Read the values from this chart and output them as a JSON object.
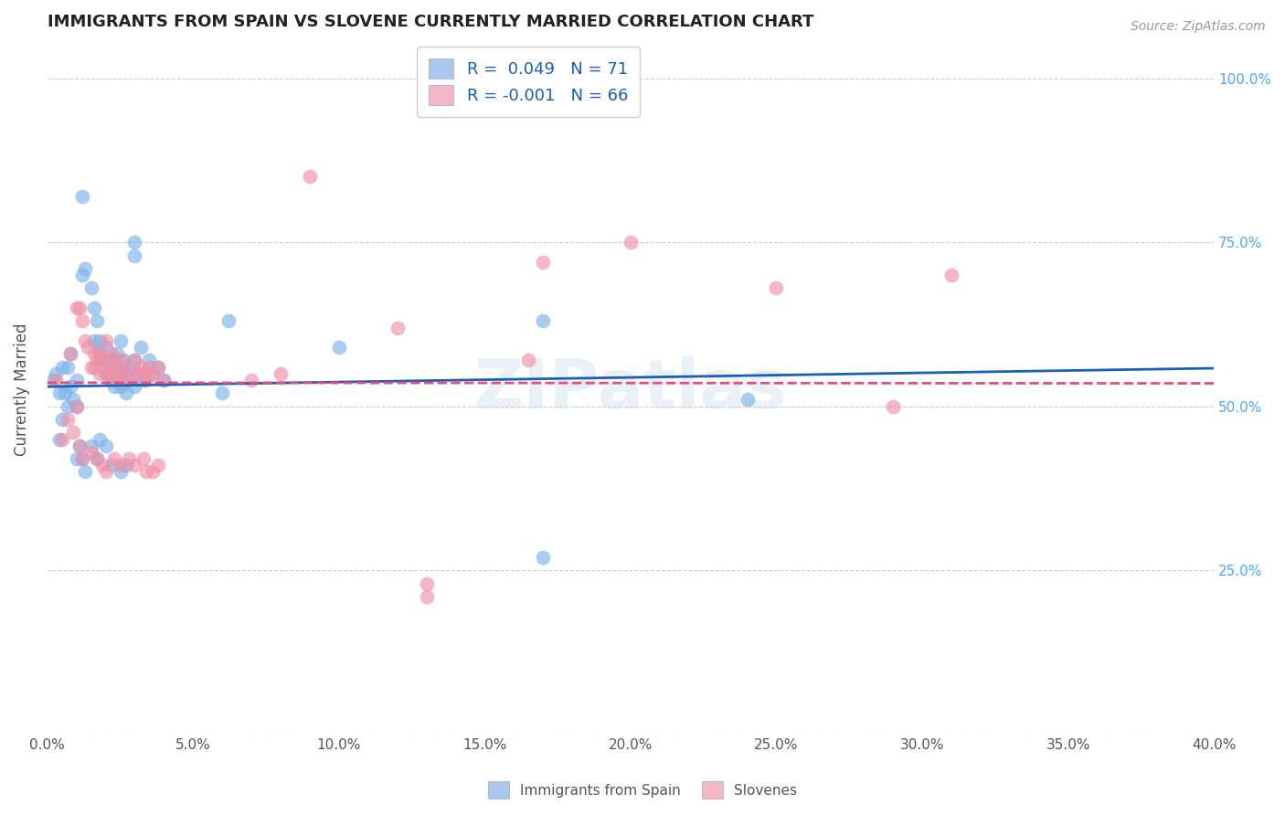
{
  "title": "IMMIGRANTS FROM SPAIN VS SLOVENE CURRENTLY MARRIED CORRELATION CHART",
  "source": "Source: ZipAtlas.com",
  "ylabel": "Currently Married",
  "ytick_labels": [
    "",
    "25.0%",
    "50.0%",
    "75.0%",
    "100.0%"
  ],
  "ytick_values": [
    0.0,
    0.25,
    0.5,
    0.75,
    1.0
  ],
  "xtick_values": [
    0.0,
    0.05,
    0.1,
    0.15,
    0.2,
    0.25,
    0.3,
    0.35,
    0.4
  ],
  "xlim": [
    0.0,
    0.4
  ],
  "ylim": [
    0.0,
    1.05
  ],
  "legend_items": [
    {
      "label": "R =  0.049   N = 71",
      "color": "#a8c8f0"
    },
    {
      "label": "R = -0.001   N = 66",
      "color": "#f5b8c8"
    }
  ],
  "blue_color": "#7ab3e8",
  "pink_color": "#f090a8",
  "trendline_blue_color": "#1a5fb4",
  "trendline_pink_color": "#e0507a",
  "watermark": "ZIPatlas",
  "blue_scatter": [
    [
      0.005,
      0.56
    ],
    [
      0.008,
      0.58
    ],
    [
      0.01,
      0.54
    ],
    [
      0.012,
      0.7
    ],
    [
      0.013,
      0.71
    ],
    [
      0.015,
      0.68
    ],
    [
      0.016,
      0.65
    ],
    [
      0.016,
      0.6
    ],
    [
      0.017,
      0.63
    ],
    [
      0.018,
      0.6
    ],
    [
      0.018,
      0.58
    ],
    [
      0.019,
      0.57
    ],
    [
      0.02,
      0.55
    ],
    [
      0.02,
      0.59
    ],
    [
      0.021,
      0.57
    ],
    [
      0.021,
      0.55
    ],
    [
      0.022,
      0.56
    ],
    [
      0.022,
      0.54
    ],
    [
      0.023,
      0.53
    ],
    [
      0.023,
      0.57
    ],
    [
      0.024,
      0.55
    ],
    [
      0.024,
      0.58
    ],
    [
      0.025,
      0.56
    ],
    [
      0.025,
      0.53
    ],
    [
      0.025,
      0.6
    ],
    [
      0.026,
      0.55
    ],
    [
      0.026,
      0.57
    ],
    [
      0.027,
      0.54
    ],
    [
      0.027,
      0.52
    ],
    [
      0.028,
      0.56
    ],
    [
      0.028,
      0.54
    ],
    [
      0.03,
      0.53
    ],
    [
      0.03,
      0.57
    ],
    [
      0.031,
      0.55
    ],
    [
      0.032,
      0.59
    ],
    [
      0.033,
      0.54
    ],
    [
      0.035,
      0.57
    ],
    [
      0.036,
      0.55
    ],
    [
      0.038,
      0.56
    ],
    [
      0.04,
      0.54
    ],
    [
      0.002,
      0.54
    ],
    [
      0.003,
      0.55
    ],
    [
      0.004,
      0.52
    ],
    [
      0.004,
      0.45
    ],
    [
      0.005,
      0.48
    ],
    [
      0.006,
      0.52
    ],
    [
      0.007,
      0.5
    ],
    [
      0.007,
      0.56
    ],
    [
      0.008,
      0.53
    ],
    [
      0.009,
      0.51
    ],
    [
      0.01,
      0.42
    ],
    [
      0.01,
      0.5
    ],
    [
      0.011,
      0.44
    ],
    [
      0.012,
      0.42
    ],
    [
      0.013,
      0.4
    ],
    [
      0.015,
      0.44
    ],
    [
      0.017,
      0.42
    ],
    [
      0.018,
      0.45
    ],
    [
      0.02,
      0.44
    ],
    [
      0.022,
      0.41
    ],
    [
      0.025,
      0.4
    ],
    [
      0.027,
      0.41
    ],
    [
      0.06,
      0.52
    ],
    [
      0.1,
      0.59
    ],
    [
      0.17,
      0.27
    ],
    [
      0.17,
      0.63
    ],
    [
      0.24,
      0.51
    ],
    [
      0.03,
      0.75
    ],
    [
      0.03,
      0.73
    ],
    [
      0.062,
      0.63
    ],
    [
      0.012,
      0.82
    ]
  ],
  "pink_scatter": [
    [
      0.008,
      0.58
    ],
    [
      0.01,
      0.65
    ],
    [
      0.011,
      0.65
    ],
    [
      0.012,
      0.63
    ],
    [
      0.013,
      0.6
    ],
    [
      0.014,
      0.59
    ],
    [
      0.015,
      0.56
    ],
    [
      0.016,
      0.58
    ],
    [
      0.016,
      0.56
    ],
    [
      0.017,
      0.57
    ],
    [
      0.018,
      0.55
    ],
    [
      0.018,
      0.58
    ],
    [
      0.019,
      0.57
    ],
    [
      0.02,
      0.55
    ],
    [
      0.02,
      0.6
    ],
    [
      0.021,
      0.57
    ],
    [
      0.021,
      0.55
    ],
    [
      0.022,
      0.58
    ],
    [
      0.022,
      0.55
    ],
    [
      0.023,
      0.56
    ],
    [
      0.024,
      0.54
    ],
    [
      0.025,
      0.57
    ],
    [
      0.025,
      0.55
    ],
    [
      0.026,
      0.56
    ],
    [
      0.027,
      0.54
    ],
    [
      0.028,
      0.55
    ],
    [
      0.03,
      0.57
    ],
    [
      0.031,
      0.55
    ],
    [
      0.032,
      0.56
    ],
    [
      0.033,
      0.55
    ],
    [
      0.034,
      0.54
    ],
    [
      0.035,
      0.56
    ],
    [
      0.036,
      0.55
    ],
    [
      0.038,
      0.56
    ],
    [
      0.04,
      0.54
    ],
    [
      0.003,
      0.54
    ],
    [
      0.005,
      0.45
    ],
    [
      0.007,
      0.48
    ],
    [
      0.009,
      0.46
    ],
    [
      0.01,
      0.5
    ],
    [
      0.011,
      0.44
    ],
    [
      0.012,
      0.42
    ],
    [
      0.015,
      0.43
    ],
    [
      0.017,
      0.42
    ],
    [
      0.019,
      0.41
    ],
    [
      0.02,
      0.4
    ],
    [
      0.023,
      0.42
    ],
    [
      0.025,
      0.41
    ],
    [
      0.028,
      0.42
    ],
    [
      0.03,
      0.41
    ],
    [
      0.033,
      0.42
    ],
    [
      0.034,
      0.4
    ],
    [
      0.036,
      0.4
    ],
    [
      0.038,
      0.41
    ],
    [
      0.09,
      0.85
    ],
    [
      0.17,
      0.72
    ],
    [
      0.25,
      0.68
    ],
    [
      0.31,
      0.7
    ],
    [
      0.07,
      0.54
    ],
    [
      0.08,
      0.55
    ],
    [
      0.165,
      0.57
    ],
    [
      0.29,
      0.5
    ],
    [
      0.12,
      0.62
    ],
    [
      0.2,
      0.75
    ],
    [
      0.13,
      0.23
    ],
    [
      0.13,
      0.21
    ]
  ],
  "blue_trend": [
    0.0,
    0.4,
    0.53,
    0.558
  ],
  "pink_trend": [
    0.0,
    0.4,
    0.536,
    0.535
  ],
  "bottom_legend_labels": [
    "Immigrants from Spain",
    "Slovenes"
  ]
}
